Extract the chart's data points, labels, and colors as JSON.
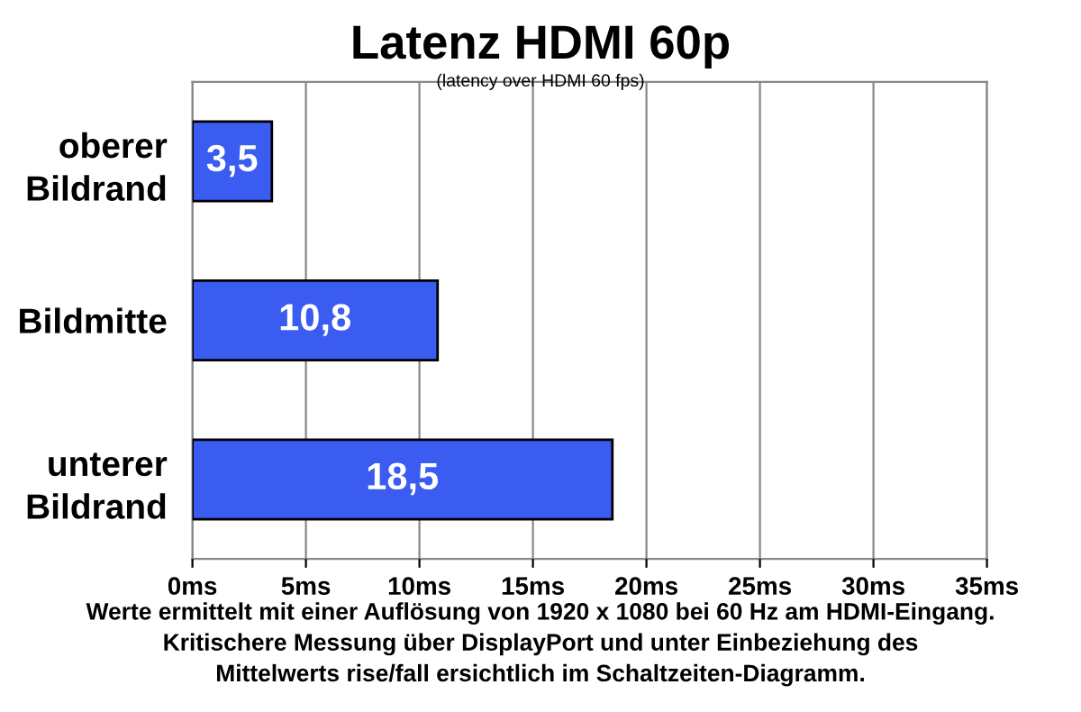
{
  "chart_data": {
    "type": "bar",
    "orientation": "horizontal",
    "title": "Latenz HDMI 60p",
    "subtitle": "(latency over HDMI 60 fps)",
    "categories": [
      "oberer\nBildrand",
      "Bildmitte",
      "unterer\nBildrand"
    ],
    "values": [
      3.5,
      10.8,
      18.5
    ],
    "value_labels": [
      "3,5",
      "10,8",
      "18,5"
    ],
    "color": "#3b5cf0",
    "xlim": [
      0,
      35
    ],
    "xticks": [
      {
        "value": 0,
        "label": "0ms"
      },
      {
        "value": 5,
        "label": "5ms"
      },
      {
        "value": 10,
        "label": "10ms"
      },
      {
        "value": 15,
        "label": "15ms"
      },
      {
        "value": 20,
        "label": "20ms"
      },
      {
        "value": 25,
        "label": "25ms"
      },
      {
        "value": 30,
        "label": "30ms"
      },
      {
        "value": 35,
        "label": "35ms"
      }
    ],
    "grid": "x",
    "annotations": [
      "Werte ermittelt mit einer Auflösung von 1920 x 1080 bei 60 Hz am HDMI-Eingang.\nKritischere Messung über DisplayPort und unter Einbeziehung des\nMittelwerts rise/fall ersichtlich im Schaltzeiten-Diagramm."
    ]
  }
}
